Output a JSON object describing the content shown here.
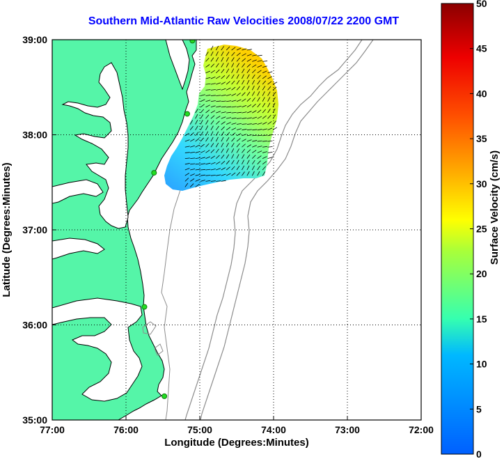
{
  "title": "Southern Mid-Atlantic Raw Velocities 2008/07/22 2200 GMT",
  "xlabel": "Longitude (Degrees:Minutes)",
  "ylabel": "Latitude (Degrees:Minutes)",
  "colorbar_label": "Surface Velocity (cm/s)",
  "x_ticks": [
    "77:00",
    "76:00",
    "75:00",
    "74:00",
    "73:00",
    "72:00"
  ],
  "y_ticks": [
    "39:00",
    "38:00",
    "37:00",
    "36:00",
    "35:00"
  ],
  "colorbar_ticks": [
    "0",
    "5",
    "10",
    "15",
    "20",
    "25",
    "30",
    "35",
    "40",
    "45",
    "50"
  ],
  "colors": {
    "land": "#55f5a8",
    "water": "#ffffff",
    "title": "#0000ff",
    "bathymetry": "#8c8c8c",
    "station": "#22dd22"
  },
  "chart_data": {
    "type": "map",
    "x_range_deg_west": [
      77,
      72
    ],
    "y_range_deg_north": [
      35,
      39
    ],
    "colorbar_range_cm_s": [
      0,
      50
    ],
    "grid": "dotted",
    "legend": "colorbar-right",
    "stations": [
      {
        "lon": -75.1,
        "lat": 38.99
      },
      {
        "lon": -75.17,
        "lat": 38.22
      },
      {
        "lon": -75.62,
        "lat": 37.6
      },
      {
        "lon": -75.75,
        "lat": 36.19
      },
      {
        "lon": -75.48,
        "lat": 35.25
      }
    ],
    "velocity_field": {
      "lon_range": [
        -75.2,
        -74.0
      ],
      "lat_range": [
        37.45,
        38.95
      ],
      "speed_range_cm_s": [
        5,
        28
      ],
      "dominant_direction": "northeast"
    }
  }
}
